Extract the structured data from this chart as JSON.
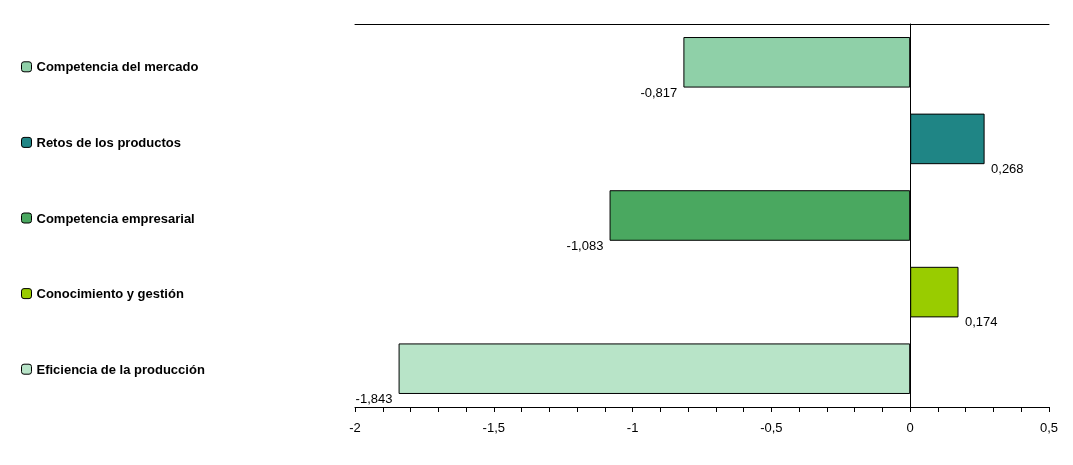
{
  "chart_data": {
    "type": "bar",
    "orientation": "horizontal",
    "stacked": true,
    "categories": [
      null,
      null,
      null,
      null,
      null
    ],
    "series": [
      {
        "name": "Competencia del mercado",
        "color": "#8fd0a8",
        "values": [
          -0.817,
          null,
          null,
          null,
          null
        ],
        "value_labels": [
          "-0,817",
          null,
          null,
          null,
          null
        ]
      },
      {
        "name": "Retos de los productos",
        "color": "#1f8585",
        "values": [
          null,
          0.268,
          null,
          null,
          null
        ],
        "value_labels": [
          null,
          "0,268",
          null,
          null,
          null
        ]
      },
      {
        "name": "Competencia empresarial",
        "color": "#4aa860",
        "values": [
          null,
          null,
          -1.083,
          null,
          null
        ],
        "value_labels": [
          null,
          null,
          "-1,083",
          null,
          null
        ]
      },
      {
        "name": "Conocimiento y gestión",
        "color": "#99cc00",
        "values": [
          null,
          null,
          null,
          0.174,
          null
        ],
        "value_labels": [
          null,
          null,
          null,
          "0,174",
          null
        ]
      },
      {
        "name": "Eficiencia de la producción",
        "color": "#b8e4c8",
        "values": [
          null,
          null,
          null,
          null,
          -1.843
        ],
        "value_labels": [
          null,
          null,
          null,
          null,
          "-1,843"
        ]
      }
    ],
    "xlim": [
      -2,
      0.5
    ],
    "xticks": [
      {
        "value": -2,
        "label": "-2"
      },
      {
        "value": -1.5,
        "label": "-1,5"
      },
      {
        "value": -1,
        "label": "-1"
      },
      {
        "value": -0.5,
        "label": "-0,5"
      },
      {
        "value": 0,
        "label": "0"
      },
      {
        "value": 0.5,
        "label": "0,5"
      }
    ],
    "legend": "left"
  }
}
